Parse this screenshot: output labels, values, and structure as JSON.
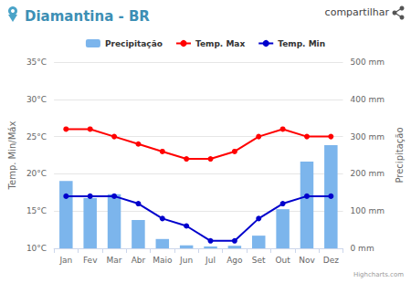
{
  "chart_data": {
    "type": "bar",
    "title": "Diamantina - BR",
    "annotations": [
      "compartilhar",
      "Highcharts.com"
    ],
    "categories": [
      "Jan",
      "Fev",
      "Mar",
      "Abr",
      "Maio",
      "Jun",
      "Jul",
      "Ago",
      "Set",
      "Out",
      "Nov",
      "Dez"
    ],
    "y_label": "Temp. Min/Máx",
    "y2_label": "Precipitação",
    "ylim": [
      10,
      35
    ],
    "yticks": [
      {
        "value": 10,
        "label": "10°C"
      },
      {
        "value": 15,
        "label": "15°C"
      },
      {
        "value": 20,
        "label": "20°C"
      },
      {
        "value": 25,
        "label": "25°C"
      },
      {
        "value": 30,
        "label": "30°C"
      },
      {
        "value": 35,
        "label": "35°C"
      }
    ],
    "y2lim": [
      0,
      500
    ],
    "y2ticks": [
      {
        "value": 0,
        "label": "0 mm"
      },
      {
        "value": 100,
        "label": "100 mm"
      },
      {
        "value": 200,
        "label": "200 mm"
      },
      {
        "value": 300,
        "label": "300 mm"
      },
      {
        "value": 400,
        "label": "400 mm"
      },
      {
        "value": 500,
        "label": "500 mm"
      }
    ],
    "grid": true,
    "legend": "top",
    "series": [
      {
        "name": "Precipitação",
        "type": "bar",
        "axis": "y2",
        "color": "#7cb5ec",
        "values": [
          181,
          135,
          145,
          76,
          25,
          8,
          5,
          7,
          34,
          105,
          233,
          277
        ]
      },
      {
        "name": "Temp. Max",
        "type": "line",
        "color": "#ff0000",
        "marker": "circle",
        "values": [
          26,
          26,
          25,
          24,
          23,
          22,
          22,
          23,
          25,
          26,
          25,
          25
        ]
      },
      {
        "name": "Temp. Min",
        "type": "line",
        "color": "#0000cc",
        "marker": "circle",
        "values": [
          17,
          17,
          17,
          16,
          14,
          13,
          11,
          11,
          14,
          16,
          17,
          17
        ]
      }
    ]
  }
}
